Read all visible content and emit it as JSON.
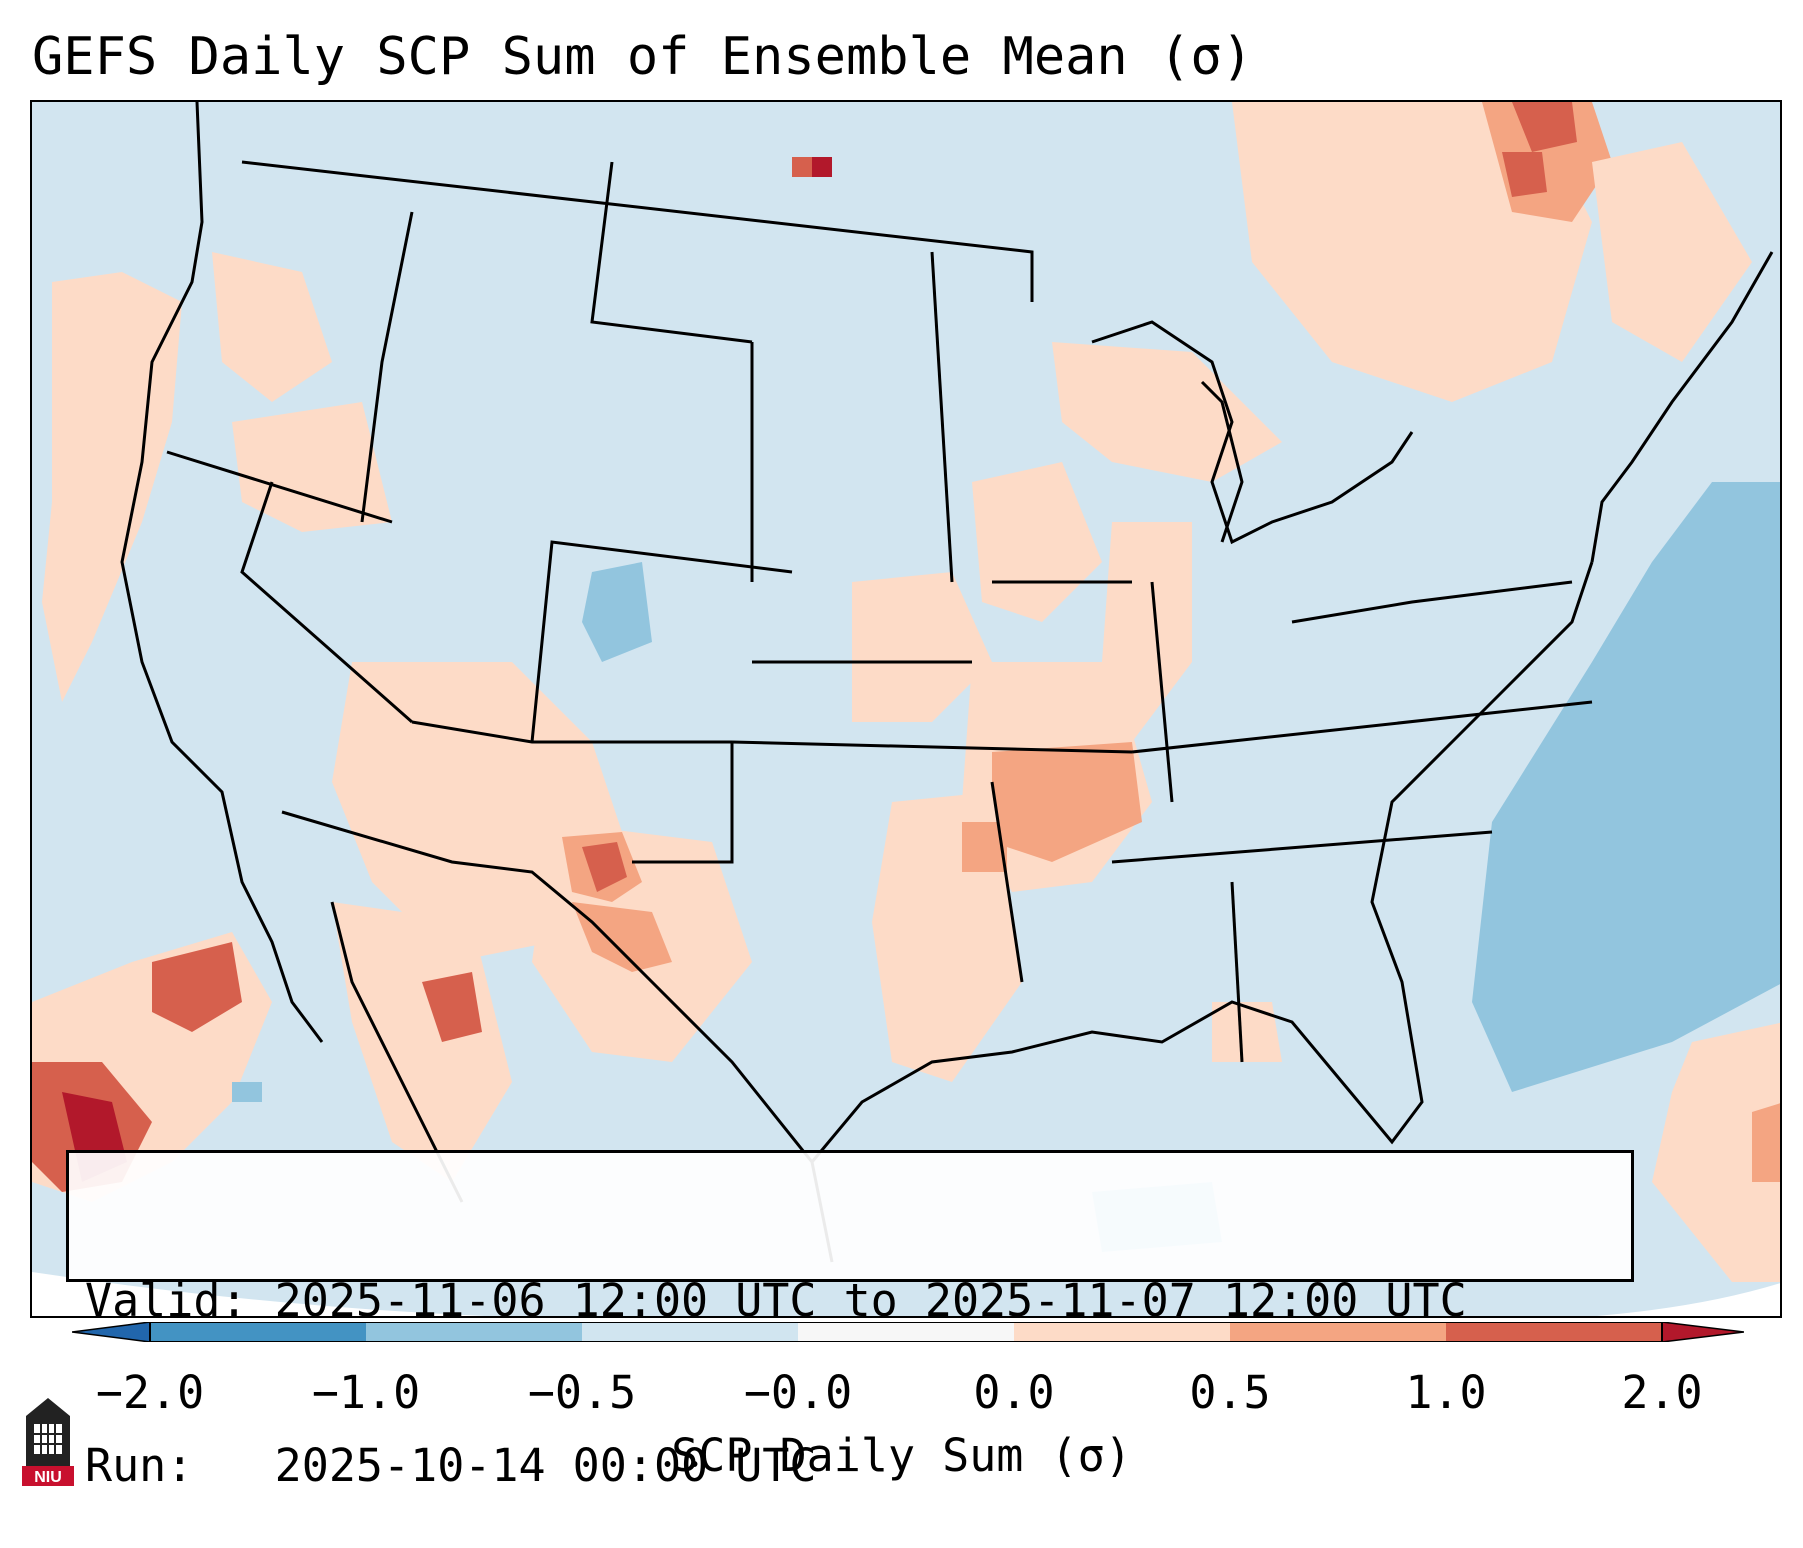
{
  "title": "GEFS Daily SCP Sum of Ensemble Mean (σ)",
  "info": {
    "valid": "Valid: 2025-11-06 12:00 UTC to 2025-11-07 12:00 UTC",
    "run": "Run:   2025-10-14 00:00 UTC"
  },
  "colorbar": {
    "label": "SCP Daily Sum (σ)",
    "ticks": [
      "−2.0",
      "−1.0",
      "−0.5",
      "−0.0",
      "0.0",
      "0.5",
      "1.0",
      "2.0"
    ],
    "bin_colors": [
      "#4393c3",
      "#92c5de",
      "#d1e5f0",
      "#f7f7f7",
      "#fddbc7",
      "#f4a582",
      "#d6604d"
    ],
    "extend_min_color": "#2166ac",
    "extend_max_color": "#b2182b"
  },
  "logo": {
    "text": "NIU",
    "icon": "university-tower-icon"
  },
  "colors": {
    "ocean_background": "#d2e5f0",
    "positive_light": "#fddbc7",
    "positive_mid": "#f4a582",
    "positive_strong": "#d6604d",
    "positive_max": "#b2182b",
    "negative_light": "#92c5de",
    "border": "#000000"
  }
}
